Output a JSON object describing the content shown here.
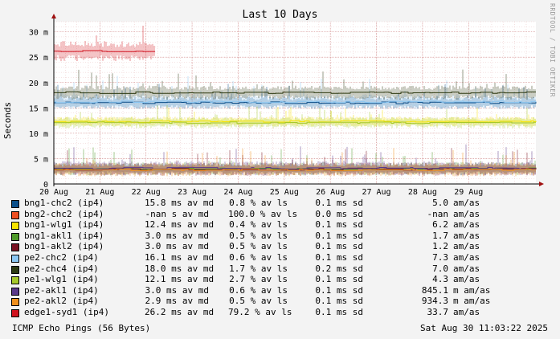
{
  "chart_data": {
    "type": "line",
    "title": "Last 10 Days",
    "ylabel": "Seconds",
    "vendor_label": "RRDTOOL / TOBI OETIKER",
    "ylim_ms": [
      0,
      32
    ],
    "y_ticks": [
      {
        "value": 0,
        "label": "0"
      },
      {
        "value": 5,
        "label": "5 m"
      },
      {
        "value": 10,
        "label": "10 m"
      },
      {
        "value": 15,
        "label": "15 m"
      },
      {
        "value": 20,
        "label": "20 m"
      },
      {
        "value": 25,
        "label": "25 m"
      },
      {
        "value": 30,
        "label": "30 m"
      }
    ],
    "x_range_days": [
      0,
      10.46
    ],
    "x_ticks": [
      {
        "value": 0,
        "label": "20 Aug"
      },
      {
        "value": 1,
        "label": "21 Aug"
      },
      {
        "value": 2,
        "label": "22 Aug"
      },
      {
        "value": 3,
        "label": "23 Aug"
      },
      {
        "value": 4,
        "label": "24 Aug"
      },
      {
        "value": 5,
        "label": "25 Aug"
      },
      {
        "value": 6,
        "label": "26 Aug"
      },
      {
        "value": 7,
        "label": "27 Aug"
      },
      {
        "value": 8,
        "label": "28 Aug"
      },
      {
        "value": 9,
        "label": "29 Aug"
      }
    ],
    "grid": true,
    "series": [
      {
        "name": "bng1-chc2 (ip4)",
        "color": "#0b4f8a",
        "avg": "15.8",
        "loss": "0.8",
        "sd": "0.1",
        "step": "5.0",
        "line_ms": 16.0,
        "spread_ms": 1.2,
        "x_end": 10.46
      },
      {
        "name": "bng2-chc2 (ip4)",
        "color": "#f05023",
        "avg": "-nan",
        "avg_unit": "s",
        "loss": "100.0",
        "sd": "0.0",
        "step": "-nan",
        "line_ms": null
      },
      {
        "name": "bng1-wlg1 (ip4)",
        "color": "#f7e400",
        "avg": "12.4",
        "loss": "0.4",
        "sd": "0.1",
        "step": "6.2",
        "line_ms": 12.3,
        "spread_ms": 1.0,
        "x_end": 10.46
      },
      {
        "name": "bng1-akl1 (ip4)",
        "color": "#4e9a2a",
        "avg": "3.0",
        "loss": "0.5",
        "sd": "0.1",
        "step": "1.7",
        "line_ms": 3.0,
        "spread_ms": 1.3,
        "x_end": 10.46
      },
      {
        "name": "bng1-akl2 (ip4)",
        "color": "#7a1222",
        "avg": "3.0",
        "loss": "0.5",
        "sd": "0.1",
        "step": "1.2",
        "line_ms": 2.9,
        "spread_ms": 1.3,
        "x_end": 10.46
      },
      {
        "name": "pe2-chc2 (ip4)",
        "color": "#8cc7f2",
        "avg": "16.1",
        "loss": "0.6",
        "sd": "0.1",
        "step": "7.3",
        "line_ms": 16.2,
        "spread_ms": 1.5,
        "x_end": 10.46
      },
      {
        "name": "pe2-chc4 (ip4)",
        "color": "#2e3b12",
        "avg": "18.0",
        "loss": "1.7",
        "sd": "0.2",
        "step": "7.0",
        "line_ms": 18.0,
        "spread_ms": 1.4,
        "x_end": 10.46
      },
      {
        "name": "pe1-wlg1 (ip4)",
        "color": "#a6c92b",
        "avg": "12.1",
        "loss": "2.7",
        "sd": "0.1",
        "step": "4.3",
        "line_ms": 12.1,
        "spread_ms": 1.1,
        "x_end": 10.46
      },
      {
        "name": "pe2-akl1 (ip4)",
        "color": "#5a3a8a",
        "avg": "3.0",
        "loss": "0.6",
        "sd": "0.1",
        "step": "845.1",
        "step_unit": "m am/as",
        "line_ms": 3.1,
        "spread_ms": 1.4,
        "x_end": 10.46
      },
      {
        "name": "pe2-akl2 (ip4)",
        "color": "#f0901e",
        "avg": "2.9",
        "loss": "0.5",
        "sd": "0.1",
        "step": "934.3",
        "step_unit": "m am/as",
        "line_ms": 2.8,
        "spread_ms": 1.3,
        "x_end": 10.46
      },
      {
        "name": "edge1-syd1 (ip4)",
        "color": "#d0121e",
        "avg": "26.2",
        "loss": "79.2",
        "sd": "0.1",
        "step": "33.7",
        "line_ms": 26.2,
        "spread_ms": 2.0,
        "x_end": 2.2
      }
    ],
    "units": {
      "avg": "ms av md",
      "loss": "% av ls",
      "sd": "ms sd",
      "step": "am/as"
    }
  },
  "footer": {
    "left": "ICMP Echo Pings (56 Bytes)",
    "right": "Sat Aug 30 11:03:22 2025"
  }
}
